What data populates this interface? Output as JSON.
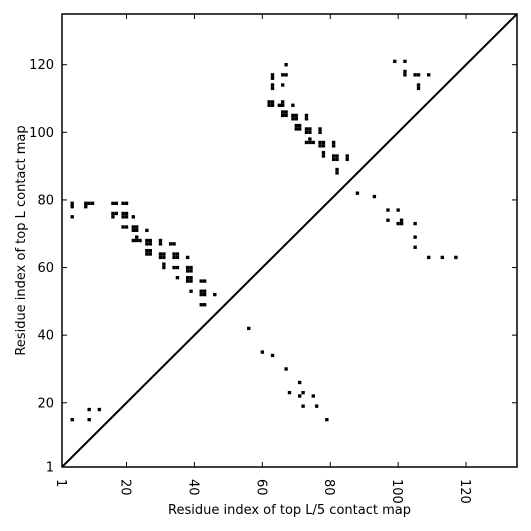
{
  "chart_data": {
    "type": "scatter",
    "title": "",
    "xlabel": "Residue index of top L/5 contact map",
    "ylabel": "Residue index of top L contact map",
    "xlim": [
      1,
      135
    ],
    "ylim": [
      1,
      135
    ],
    "x_ticks": [
      1,
      20,
      40,
      60,
      80,
      100,
      120
    ],
    "y_ticks": [
      1,
      20,
      40,
      60,
      80,
      100,
      120
    ],
    "x_tick_rotation": 90,
    "grid": false,
    "diagonal": {
      "from": [
        1,
        1
      ],
      "to": [
        135,
        135
      ],
      "color": "#000000"
    },
    "marker": {
      "shape": "square",
      "color": "#000000"
    },
    "series": [
      {
        "points": [
          [
            4,
            79
          ],
          [
            4,
            78
          ],
          [
            4,
            75
          ],
          [
            8,
            79
          ],
          [
            8,
            78
          ],
          [
            9,
            79
          ],
          [
            10,
            79
          ],
          [
            16,
            79
          ],
          [
            17,
            79
          ],
          [
            19,
            79
          ],
          [
            20,
            79
          ],
          [
            16,
            76
          ],
          [
            16,
            75
          ],
          [
            17,
            76
          ],
          [
            19,
            76
          ],
          [
            19,
            75
          ],
          [
            20,
            76
          ],
          [
            20,
            75
          ],
          [
            19,
            72
          ],
          [
            20,
            72
          ],
          [
            22,
            75
          ],
          [
            22,
            72
          ],
          [
            23,
            72
          ],
          [
            22,
            71
          ],
          [
            23,
            71
          ],
          [
            22,
            68
          ],
          [
            23,
            68
          ],
          [
            23,
            69
          ],
          [
            24,
            68
          ],
          [
            26,
            71
          ],
          [
            26,
            68
          ],
          [
            27,
            68
          ],
          [
            26,
            67
          ],
          [
            27,
            67
          ],
          [
            26,
            65
          ],
          [
            27,
            65
          ],
          [
            26,
            64
          ],
          [
            27,
            64
          ],
          [
            30,
            68
          ],
          [
            30,
            67
          ],
          [
            30,
            64
          ],
          [
            31,
            64
          ],
          [
            30,
            63
          ],
          [
            31,
            63
          ],
          [
            31,
            61
          ],
          [
            31,
            60
          ],
          [
            33,
            67
          ],
          [
            34,
            67
          ],
          [
            34,
            64
          ],
          [
            35,
            64
          ],
          [
            34,
            63
          ],
          [
            35,
            63
          ],
          [
            34,
            60
          ],
          [
            35,
            60
          ],
          [
            35,
            57
          ],
          [
            38,
            63
          ],
          [
            38,
            60
          ],
          [
            39,
            60
          ],
          [
            38,
            59
          ],
          [
            39,
            59
          ],
          [
            38,
            57
          ],
          [
            39,
            57
          ],
          [
            38,
            56
          ],
          [
            39,
            56
          ],
          [
            42,
            56
          ],
          [
            43,
            56
          ],
          [
            39,
            53
          ],
          [
            42,
            53
          ],
          [
            43,
            53
          ],
          [
            42,
            52
          ],
          [
            43,
            52
          ],
          [
            46,
            52
          ],
          [
            42,
            49
          ],
          [
            43,
            49
          ],
          [
            62,
            109
          ],
          [
            63,
            109
          ],
          [
            62,
            108
          ],
          [
            63,
            108
          ],
          [
            63,
            117
          ],
          [
            63,
            116
          ],
          [
            63,
            114
          ],
          [
            63,
            113
          ],
          [
            66,
            117
          ],
          [
            67,
            117
          ],
          [
            67,
            120
          ],
          [
            66,
            114
          ],
          [
            65,
            108
          ],
          [
            66,
            108
          ],
          [
            66,
            109
          ],
          [
            66,
            106
          ],
          [
            67,
            106
          ],
          [
            66,
            105
          ],
          [
            67,
            105
          ],
          [
            69,
            108
          ],
          [
            69,
            105
          ],
          [
            70,
            105
          ],
          [
            69,
            104
          ],
          [
            70,
            104
          ],
          [
            70,
            102
          ],
          [
            71,
            102
          ],
          [
            70,
            101
          ],
          [
            71,
            101
          ],
          [
            73,
            105
          ],
          [
            73,
            104
          ],
          [
            73,
            101
          ],
          [
            74,
            101
          ],
          [
            73,
            100
          ],
          [
            74,
            100
          ],
          [
            73,
            97
          ],
          [
            74,
            97
          ],
          [
            75,
            97
          ],
          [
            74,
            98
          ],
          [
            77,
            101
          ],
          [
            77,
            100
          ],
          [
            77,
            97
          ],
          [
            78,
            97
          ],
          [
            77,
            96
          ],
          [
            78,
            96
          ],
          [
            78,
            94
          ],
          [
            78,
            93
          ],
          [
            81,
            97
          ],
          [
            81,
            96
          ],
          [
            81,
            93
          ],
          [
            82,
            93
          ],
          [
            81,
            92
          ],
          [
            82,
            92
          ],
          [
            82,
            89
          ],
          [
            82,
            88
          ],
          [
            85,
            93
          ],
          [
            85,
            92
          ],
          [
            88,
            82
          ],
          [
            93,
            81
          ],
          [
            99,
            121
          ],
          [
            102,
            121
          ],
          [
            102,
            118
          ],
          [
            102,
            117
          ],
          [
            105,
            117
          ],
          [
            106,
            117
          ],
          [
            106,
            114
          ],
          [
            106,
            113
          ],
          [
            109,
            117
          ],
          [
            97,
            77
          ],
          [
            100,
            77
          ],
          [
            97,
            74
          ],
          [
            100,
            73
          ],
          [
            101,
            73
          ],
          [
            101,
            74
          ],
          [
            105,
            73
          ],
          [
            105,
            69
          ],
          [
            105,
            66
          ],
          [
            109,
            63
          ],
          [
            113,
            63
          ],
          [
            117,
            63
          ],
          [
            56,
            42
          ],
          [
            60,
            35
          ],
          [
            63,
            34
          ],
          [
            67,
            30
          ],
          [
            68,
            23
          ],
          [
            71,
            26
          ],
          [
            71,
            22
          ],
          [
            72,
            23
          ],
          [
            72,
            19
          ],
          [
            75,
            22
          ],
          [
            76,
            19
          ],
          [
            79,
            15
          ],
          [
            4,
            15
          ],
          [
            9,
            18
          ],
          [
            12,
            18
          ],
          [
            9,
            15
          ]
        ]
      }
    ]
  }
}
